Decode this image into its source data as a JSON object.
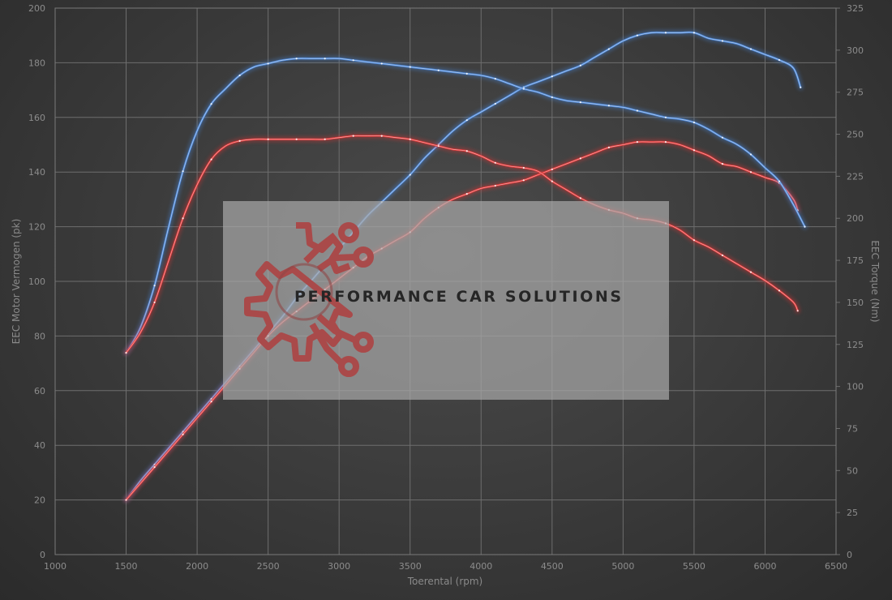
{
  "chart_data": {
    "type": "line",
    "xlabel": "Toerental (rpm)",
    "ylabel_left": "EEC Motor Vermogen (pk)",
    "ylabel_right": "EEC Torque (Nm)",
    "xlim": [
      1000,
      6500
    ],
    "ylim_left": [
      0,
      200
    ],
    "ylim_right": [
      0,
      325
    ],
    "x_ticks": [
      "1000",
      "1500",
      "2000",
      "2500",
      "3000",
      "3500",
      "4000",
      "4500",
      "5000",
      "5500",
      "6000",
      "6500"
    ],
    "y_left_ticks": [
      "0",
      "20",
      "40",
      "60",
      "80",
      "100",
      "120",
      "140",
      "160",
      "180",
      "200"
    ],
    "y_right_ticks": [
      "0",
      "25",
      "50",
      "75",
      "100",
      "125",
      "150",
      "175",
      "200",
      "225",
      "250",
      "275",
      "300",
      "325"
    ],
    "grid": true,
    "series": [
      {
        "axis": "left",
        "color": "#4a86d8",
        "x": [
          1500,
          1600,
          1700,
          1800,
          1900,
          2000,
          2100,
          2200,
          2300,
          2400,
          2500,
          2600,
          2700,
          2800,
          2900,
          3000,
          3100,
          3200,
          3300,
          3400,
          3500,
          3600,
          3700,
          3800,
          3900,
          4000,
          4100,
          4200,
          4300,
          4400,
          4500,
          4600,
          4700,
          4800,
          4900,
          5000,
          5100,
          5200,
          5300,
          5400,
          5500,
          5600,
          5700,
          5800,
          5900,
          6000,
          6100,
          6200,
          6250
        ],
        "values": [
          20,
          27,
          33,
          39,
          45,
          51,
          57,
          63,
          69,
          75,
          81,
          87,
          94,
          100,
          106,
          112,
          118,
          124,
          129,
          134,
          139,
          145,
          150,
          155,
          159,
          162,
          165,
          168,
          171,
          173,
          175,
          177,
          179,
          182,
          185,
          188,
          190,
          191,
          191,
          191,
          191,
          189,
          188,
          187,
          185,
          183,
          181,
          178,
          171
        ]
      },
      {
        "axis": "left",
        "color": "#e03434",
        "x": [
          1500,
          1600,
          1700,
          1800,
          1900,
          2000,
          2100,
          2200,
          2300,
          2400,
          2500,
          2600,
          2700,
          2800,
          2900,
          3000,
          3100,
          3200,
          3300,
          3400,
          3500,
          3600,
          3700,
          3800,
          3900,
          4000,
          4100,
          4200,
          4300,
          4400,
          4500,
          4600,
          4700,
          4800,
          4900,
          5000,
          5100,
          5200,
          5300,
          5400,
          5500,
          5600,
          5700,
          5800,
          5900,
          6000,
          6100,
          6200,
          6230
        ],
        "values": [
          20,
          26,
          32,
          38,
          44,
          50,
          56,
          62,
          68,
          74,
          80,
          85,
          89,
          93,
          97,
          101,
          105,
          109,
          112,
          115,
          118,
          123,
          127,
          130,
          132,
          134,
          135,
          136,
          137,
          139,
          141,
          143,
          145,
          147,
          149,
          150,
          151,
          151,
          151,
          150,
          148,
          146,
          143,
          142,
          140,
          138,
          136,
          130,
          126
        ]
      },
      {
        "axis": "right",
        "color": "#4a86d8",
        "x": [
          1500,
          1600,
          1700,
          1800,
          1900,
          2000,
          2100,
          2200,
          2300,
          2400,
          2500,
          2600,
          2700,
          2800,
          2900,
          3000,
          3100,
          3200,
          3300,
          3400,
          3500,
          3600,
          3700,
          3800,
          3900,
          4000,
          4100,
          4200,
          4300,
          4400,
          4500,
          4600,
          4700,
          4800,
          4900,
          5000,
          5100,
          5200,
          5300,
          5400,
          5500,
          5600,
          5700,
          5800,
          5900,
          6000,
          6100,
          6200,
          6280
        ],
        "values": [
          120,
          135,
          160,
          195,
          228,
          252,
          268,
          277,
          285,
          290,
          292,
          294,
          295,
          295,
          295,
          295,
          294,
          293,
          292,
          291,
          290,
          289,
          288,
          287,
          286,
          285,
          283,
          280,
          277,
          275,
          272,
          270,
          269,
          268,
          267,
          266,
          264,
          262,
          260,
          259,
          257,
          253,
          248,
          244,
          238,
          230,
          222,
          208,
          195
        ]
      },
      {
        "axis": "right",
        "color": "#e03434",
        "x": [
          1500,
          1600,
          1700,
          1800,
          1900,
          2000,
          2100,
          2200,
          2300,
          2400,
          2500,
          2600,
          2700,
          2800,
          2900,
          3000,
          3100,
          3200,
          3300,
          3400,
          3500,
          3600,
          3700,
          3800,
          3900,
          4000,
          4100,
          4200,
          4300,
          4400,
          4500,
          4600,
          4700,
          4800,
          4900,
          5000,
          5100,
          5200,
          5300,
          5400,
          5500,
          5600,
          5700,
          5800,
          5900,
          6000,
          6100,
          6200,
          6230
        ],
        "values": [
          120,
          132,
          150,
          175,
          200,
          220,
          235,
          243,
          246,
          247,
          247,
          247,
          247,
          247,
          247,
          248,
          249,
          249,
          249,
          248,
          247,
          245,
          243,
          241,
          240,
          237,
          233,
          231,
          230,
          228,
          222,
          217,
          212,
          208,
          205,
          203,
          200,
          199,
          197,
          193,
          187,
          183,
          178,
          173,
          168,
          163,
          157,
          150,
          145
        ]
      }
    ],
    "watermark": "PERFORMANCE CAR SOLUTIONS"
  }
}
